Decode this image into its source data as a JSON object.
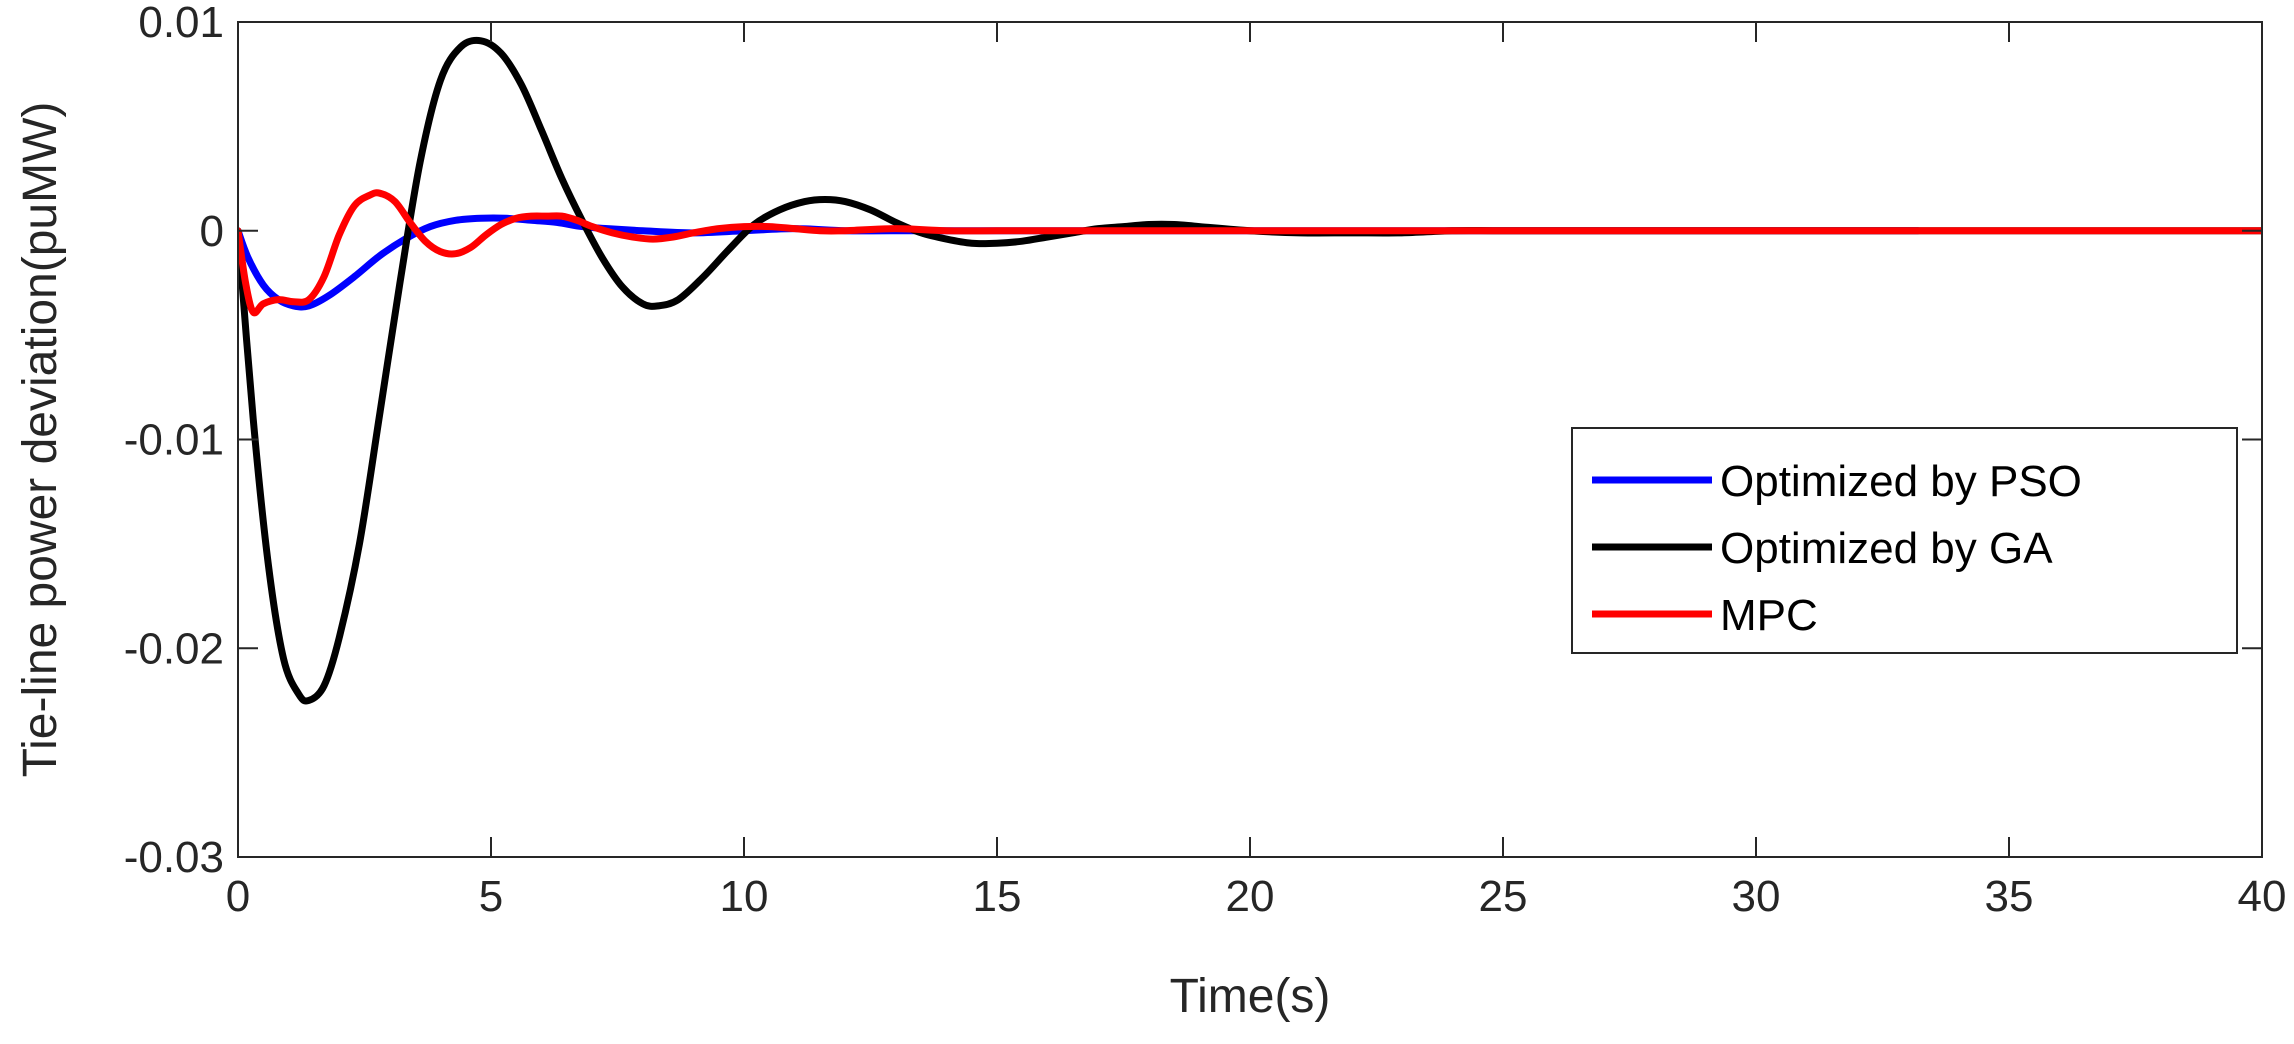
{
  "chart_data": {
    "type": "line",
    "title": "",
    "xlabel": "Time(s)",
    "ylabel": "Tie-line power deviation(puMW)",
    "xlim": [
      0,
      40
    ],
    "ylim": [
      -0.03,
      0.01
    ],
    "xticks": [
      0,
      5,
      10,
      15,
      20,
      25,
      30,
      35,
      40
    ],
    "xtick_labels": [
      "0",
      "5",
      "10",
      "15",
      "20",
      "25",
      "30",
      "35",
      "40"
    ],
    "yticks": [
      0.01,
      0,
      -0.01,
      -0.02,
      -0.03
    ],
    "ytick_labels": [
      "0.01",
      "0",
      "-0.01",
      "-0.02",
      "-0.03"
    ],
    "grid": false,
    "legend_position": "right",
    "series": [
      {
        "name": "Optimized by PSO",
        "color": "#0000ff",
        "x": [
          0,
          0.2,
          0.5,
          0.8,
          1.1,
          1.4,
          1.8,
          2.3,
          2.8,
          3.3,
          3.8,
          4.3,
          4.8,
          5.3,
          5.8,
          6.3,
          6.8,
          7.3,
          8,
          9,
          10,
          11,
          12,
          13,
          15,
          20,
          25,
          30,
          33.2
        ],
        "y": [
          0,
          -0.0013,
          -0.0026,
          -0.0033,
          -0.0036,
          -0.0036,
          -0.0031,
          -0.0022,
          -0.0012,
          -0.0004,
          0.0002,
          0.0005,
          0.0006,
          0.0006,
          0.0005,
          0.0004,
          0.0002,
          0.0001,
          0,
          -0.0001,
          0,
          0.0001,
          0,
          0,
          0,
          0,
          0,
          0,
          0
        ]
      },
      {
        "name": "Optimized by GA",
        "color": "#000000",
        "x": [
          0,
          0.3,
          0.6,
          0.9,
          1.2,
          1.4,
          1.7,
          2,
          2.4,
          2.8,
          3.2,
          3.6,
          4,
          4.4,
          4.8,
          5.2,
          5.6,
          6,
          6.4,
          6.8,
          7.2,
          7.6,
          8,
          8.3,
          8.7,
          9.2,
          9.7,
          10.2,
          10.7,
          11.2,
          11.6,
          12,
          12.5,
          13,
          13.5,
          14,
          14.5,
          15,
          15.5,
          16,
          16.5,
          17,
          17.5,
          18,
          18.5,
          19,
          20,
          21,
          22,
          23,
          24,
          25,
          27,
          30,
          35,
          40
        ],
        "y": [
          0,
          -0.009,
          -0.016,
          -0.0205,
          -0.0222,
          -0.0225,
          -0.0218,
          -0.0195,
          -0.015,
          -0.0088,
          -0.0025,
          0.0033,
          0.0072,
          0.0088,
          0.0091,
          0.0085,
          0.007,
          0.0048,
          0.0025,
          0.0005,
          -0.0013,
          -0.0027,
          -0.0035,
          -0.0036,
          -0.0033,
          -0.0022,
          -0.0009,
          0.0003,
          0.001,
          0.0014,
          0.0015,
          0.0014,
          0.001,
          0.0004,
          -0.0001,
          -0.0004,
          -0.0006,
          -0.0006,
          -0.0005,
          -0.0003,
          -0.0001,
          0.0001,
          0.0002,
          0.0003,
          0.0003,
          0.0002,
          0,
          -0.0001,
          -0.0001,
          -0.0001,
          0,
          0,
          0,
          0,
          0,
          0
        ]
      },
      {
        "name": "MPC",
        "color": "#ff0000",
        "x": [
          0,
          0.15,
          0.3,
          0.5,
          0.8,
          1.1,
          1.4,
          1.7,
          2,
          2.3,
          2.6,
          2.8,
          3.1,
          3.4,
          3.7,
          4,
          4.3,
          4.6,
          4.9,
          5.2,
          5.5,
          5.8,
          6.1,
          6.4,
          6.7,
          7,
          7.4,
          7.8,
          8.2,
          8.6,
          9,
          9.5,
          10,
          10.5,
          11,
          11.5,
          12,
          13,
          14,
          15,
          16,
          18,
          20,
          25,
          30,
          35,
          40
        ],
        "y": [
          0,
          -0.0025,
          -0.0039,
          -0.0035,
          -0.0033,
          -0.0034,
          -0.0033,
          -0.0022,
          -0.0002,
          0.0012,
          0.0017,
          0.0018,
          0.0014,
          0.0004,
          -0.0005,
          -0.001,
          -0.0011,
          -0.0008,
          -0.0002,
          0.0003,
          0.0006,
          0.0007,
          0.0007,
          0.0007,
          0.0005,
          0.0002,
          -0.0001,
          -0.0003,
          -0.0004,
          -0.0003,
          -0.0001,
          0.0001,
          0.0002,
          0.0002,
          0.0001,
          0,
          0,
          0.0001,
          0,
          0,
          0,
          0,
          0,
          0,
          0,
          0,
          0
        ]
      }
    ]
  }
}
